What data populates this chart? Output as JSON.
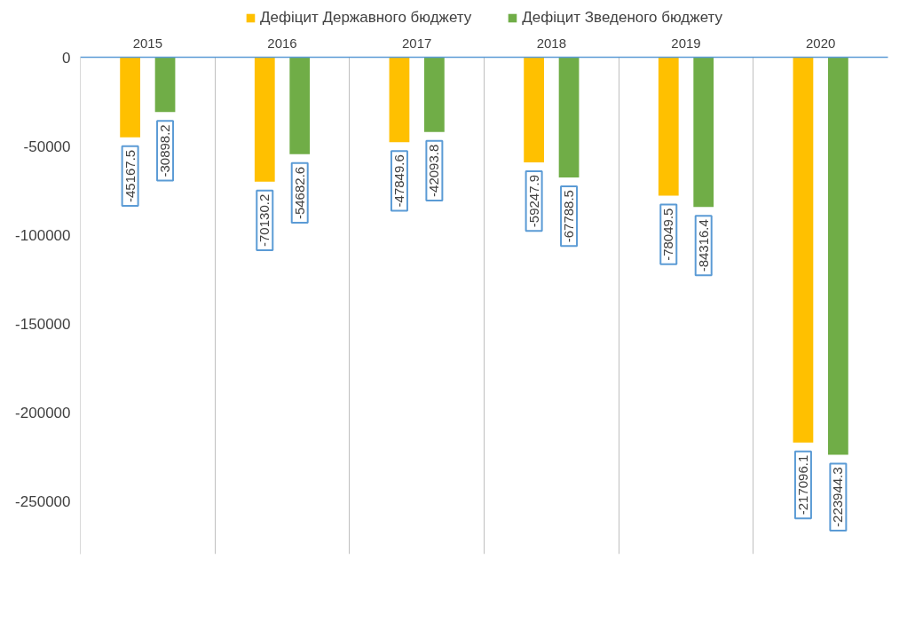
{
  "chart_data": {
    "type": "bar",
    "categories": [
      "2015",
      "2016",
      "2017",
      "2018",
      "2019",
      "2020"
    ],
    "series": [
      {
        "name": "Дефіцит Державного бюджету",
        "color": "#ffc000",
        "values": [
          -45167.5,
          -70130.2,
          -47849.6,
          -59247.9,
          -78049.5,
          -217096.1
        ]
      },
      {
        "name": "Дефіцит Зведеного бюджету",
        "color": "#70ad47",
        "values": [
          -30898.2,
          -54682.6,
          -42093.8,
          -67788.5,
          -84316.4,
          -223944.3
        ]
      }
    ],
    "ylim": [
      -280000,
      0
    ],
    "yticks": [
      -250000,
      -200000,
      -150000,
      -100000,
      -50000,
      0
    ],
    "grid": "x",
    "legend": "top",
    "data_labels": true
  }
}
